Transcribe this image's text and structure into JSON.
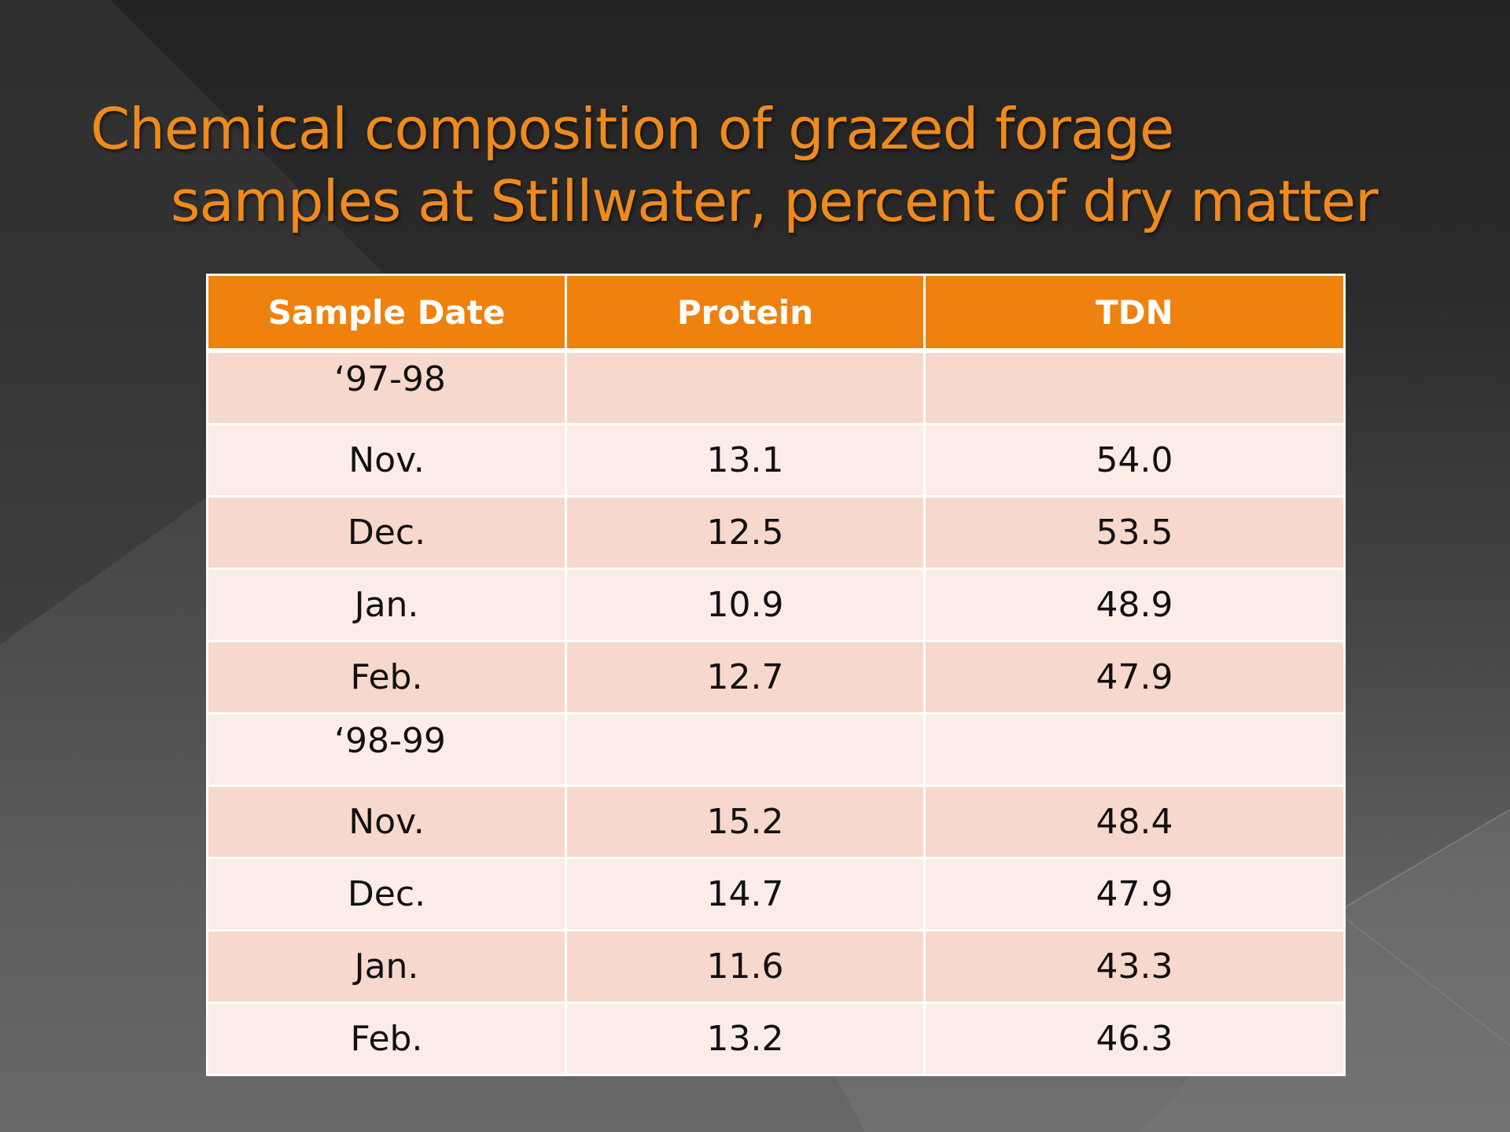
{
  "slide": {
    "title_line1": "Chemical composition of grazed forage",
    "title_line2": "samples at Stillwater, percent of dry matter"
  },
  "table": {
    "headers": [
      "Sample Date",
      "Protein",
      "TDN"
    ],
    "rows": [
      {
        "date": "‘97-98",
        "protein": "",
        "tdn": "",
        "kind": "year"
      },
      {
        "date": "Nov.",
        "protein": "13.1",
        "tdn": "54.0",
        "kind": "month"
      },
      {
        "date": "Dec.",
        "protein": "12.5",
        "tdn": "53.5",
        "kind": "month"
      },
      {
        "date": "Jan.",
        "protein": "10.9",
        "tdn": "48.9",
        "kind": "month"
      },
      {
        "date": "Feb.",
        "protein": "12.7",
        "tdn": "47.9",
        "kind": "month"
      },
      {
        "date": "‘98-99",
        "protein": "",
        "tdn": "",
        "kind": "year"
      },
      {
        "date": "Nov.",
        "protein": "15.2",
        "tdn": "48.4",
        "kind": "month"
      },
      {
        "date": "Dec.",
        "protein": "14.7",
        "tdn": "47.9",
        "kind": "month"
      },
      {
        "date": "Jan.",
        "protein": "11.6",
        "tdn": "43.3",
        "kind": "month"
      },
      {
        "date": "Feb.",
        "protein": "13.2",
        "tdn": "46.3",
        "kind": "month"
      }
    ]
  },
  "colors": {
    "title": "#ef8a1c",
    "header_bg": "#ef820e",
    "row_odd": "#f7d8cc",
    "row_even": "#fbece8"
  }
}
